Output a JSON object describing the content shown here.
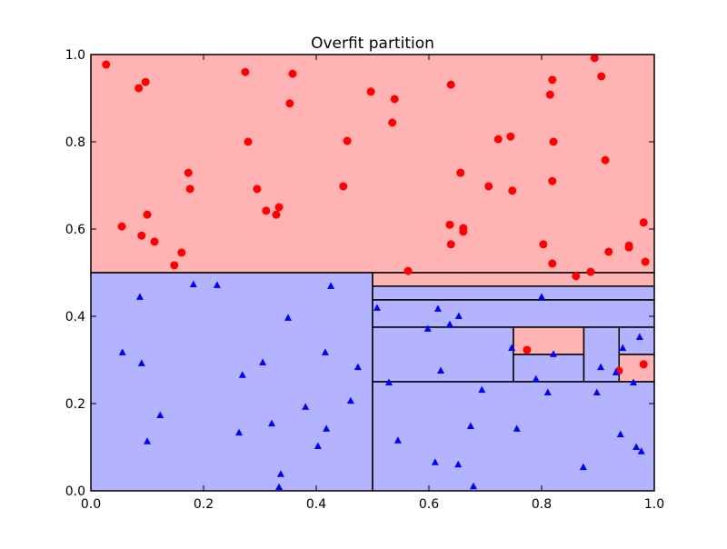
{
  "chart_data": {
    "type": "scatter",
    "title": "Overfit partition",
    "xlabel": "",
    "ylabel": "",
    "xlim": [
      0,
      1
    ],
    "ylim": [
      0,
      1
    ],
    "grid": false,
    "x_ticks": [
      "0.0",
      "0.2",
      "0.4",
      "0.6",
      "0.8",
      "1.0"
    ],
    "y_ticks": [
      "0.0",
      "0.2",
      "0.4",
      "0.6",
      "0.8",
      "1.0"
    ],
    "colors": {
      "red_region": "#ffb3b3",
      "blue_region": "#b3b3ff",
      "red_points": "#ff0000",
      "blue_points": "#0000ff",
      "edges": "#000000"
    },
    "regions": [
      {
        "x": [
          0,
          1
        ],
        "y": [
          0.5,
          1
        ],
        "class": "red"
      },
      {
        "x": [
          0,
          0.5
        ],
        "y": [
          0,
          0.5
        ],
        "class": "blue"
      },
      {
        "x": [
          0.5,
          1
        ],
        "y": [
          0.469,
          0.5
        ],
        "class": "red"
      },
      {
        "x": [
          0.5,
          1
        ],
        "y": [
          0.4375,
          0.469
        ],
        "class": "blue"
      },
      {
        "x": [
          0.5,
          1
        ],
        "y": [
          0.375,
          0.4375
        ],
        "class": "blue"
      },
      {
        "x": [
          0.5,
          0.75
        ],
        "y": [
          0.25,
          0.375
        ],
        "class": "blue"
      },
      {
        "x": [
          0.75,
          0.875
        ],
        "y": [
          0.3125,
          0.375
        ],
        "class": "red"
      },
      {
        "x": [
          0.75,
          0.875
        ],
        "y": [
          0.25,
          0.3125
        ],
        "class": "blue"
      },
      {
        "x": [
          0.875,
          0.9375
        ],
        "y": [
          0.25,
          0.375
        ],
        "class": "blue"
      },
      {
        "x": [
          0.9375,
          1
        ],
        "y": [
          0.3125,
          0.375
        ],
        "class": "blue"
      },
      {
        "x": [
          0.9375,
          1
        ],
        "y": [
          0.25,
          0.3125
        ],
        "class": "red"
      },
      {
        "x": [
          0.5,
          1
        ],
        "y": [
          0,
          0.25
        ],
        "class": "blue"
      }
    ],
    "series": [
      {
        "marker": "circle",
        "color": "#ff0000",
        "points": [
          [
            0.027,
            0.977
          ],
          [
            0.085,
            0.923
          ],
          [
            0.097,
            0.937
          ],
          [
            0.274,
            0.96
          ],
          [
            0.358,
            0.956
          ],
          [
            0.353,
            0.888
          ],
          [
            0.279,
            0.8
          ],
          [
            0.497,
            0.915
          ],
          [
            0.539,
            0.898
          ],
          [
            0.535,
            0.844
          ],
          [
            0.455,
            0.802
          ],
          [
            0.639,
            0.931
          ],
          [
            0.173,
            0.729
          ],
          [
            0.176,
            0.692
          ],
          [
            0.295,
            0.692
          ],
          [
            0.448,
            0.698
          ],
          [
            0.311,
            0.642
          ],
          [
            0.334,
            0.65
          ],
          [
            0.329,
            0.633
          ],
          [
            0.055,
            0.606
          ],
          [
            0.1,
            0.633
          ],
          [
            0.09,
            0.585
          ],
          [
            0.113,
            0.571
          ],
          [
            0.161,
            0.546
          ],
          [
            0.148,
            0.517
          ],
          [
            0.563,
            0.504
          ],
          [
            0.637,
            0.61
          ],
          [
            0.639,
            0.565
          ],
          [
            0.661,
            0.602
          ],
          [
            0.661,
            0.594
          ],
          [
            0.656,
            0.729
          ],
          [
            0.706,
            0.698
          ],
          [
            0.723,
            0.806
          ],
          [
            0.745,
            0.812
          ],
          [
            0.748,
            0.688
          ],
          [
            0.819,
            0.942
          ],
          [
            0.815,
            0.908
          ],
          [
            0.821,
            0.8
          ],
          [
            0.819,
            0.71
          ],
          [
            0.803,
            0.565
          ],
          [
            0.819,
            0.521
          ],
          [
            0.894,
            0.992
          ],
          [
            0.906,
            0.95
          ],
          [
            0.913,
            0.758
          ],
          [
            0.981,
            0.615
          ],
          [
            0.955,
            0.562
          ],
          [
            0.955,
            0.558
          ],
          [
            0.984,
            0.525
          ],
          [
            0.919,
            0.548
          ],
          [
            0.887,
            0.502
          ],
          [
            0.861,
            0.492
          ],
          [
            0.937,
            0.275
          ],
          [
            0.981,
            0.29
          ],
          [
            0.774,
            0.323
          ]
        ]
      },
      {
        "marker": "triangle",
        "color": "#0000ff",
        "points": [
          [
            0.087,
            0.444
          ],
          [
            0.182,
            0.473
          ],
          [
            0.224,
            0.471
          ],
          [
            0.426,
            0.469
          ],
          [
            0.35,
            0.396
          ],
          [
            0.056,
            0.317
          ],
          [
            0.09,
            0.292
          ],
          [
            0.305,
            0.294
          ],
          [
            0.269,
            0.265
          ],
          [
            0.416,
            0.317
          ],
          [
            0.474,
            0.283
          ],
          [
            0.381,
            0.192
          ],
          [
            0.461,
            0.206
          ],
          [
            0.123,
            0.173
          ],
          [
            0.1,
            0.113
          ],
          [
            0.263,
            0.133
          ],
          [
            0.321,
            0.154
          ],
          [
            0.418,
            0.142
          ],
          [
            0.403,
            0.102
          ],
          [
            0.337,
            0.038
          ],
          [
            0.334,
            0.008
          ],
          [
            0.508,
            0.419
          ],
          [
            0.616,
            0.417
          ],
          [
            0.653,
            0.4
          ],
          [
            0.637,
            0.381
          ],
          [
            0.598,
            0.371
          ],
          [
            0.8,
            0.444
          ],
          [
            0.747,
            0.327
          ],
          [
            0.821,
            0.313
          ],
          [
            0.621,
            0.275
          ],
          [
            0.529,
            0.248
          ],
          [
            0.79,
            0.256
          ],
          [
            0.811,
            0.225
          ],
          [
            0.694,
            0.231
          ],
          [
            0.974,
            0.352
          ],
          [
            0.944,
            0.327
          ],
          [
            0.905,
            0.283
          ],
          [
            0.932,
            0.271
          ],
          [
            0.963,
            0.248
          ],
          [
            0.898,
            0.225
          ],
          [
            0.674,
            0.148
          ],
          [
            0.756,
            0.142
          ],
          [
            0.545,
            0.115
          ],
          [
            0.94,
            0.129
          ],
          [
            0.968,
            0.1
          ],
          [
            0.977,
            0.09
          ],
          [
            0.611,
            0.065
          ],
          [
            0.652,
            0.06
          ],
          [
            0.874,
            0.054
          ],
          [
            0.679,
            0.01
          ]
        ]
      }
    ]
  }
}
